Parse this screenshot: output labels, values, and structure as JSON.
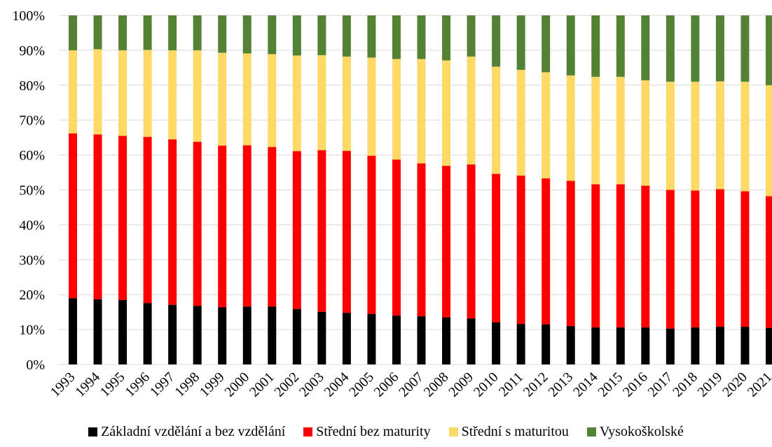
{
  "chart_data": {
    "type": "bar",
    "stacked": true,
    "title": "",
    "xlabel": "",
    "ylabel": "",
    "ylim": [
      0,
      100
    ],
    "y_tick_format": "percent",
    "y_ticks": [
      "0%",
      "10%",
      "20%",
      "30%",
      "40%",
      "50%",
      "60%",
      "70%",
      "80%",
      "90%",
      "100%"
    ],
    "grid": true,
    "legend_position": "bottom",
    "categories": [
      "1993",
      "1994",
      "1995",
      "1996",
      "1997",
      "1998",
      "1999",
      "2000",
      "2001",
      "2002",
      "2003",
      "2004",
      "2005",
      "2006",
      "2007",
      "2008",
      "2009",
      "2010",
      "2011",
      "2012",
      "2013",
      "2014",
      "2015",
      "2016",
      "2017",
      "2018",
      "2019",
      "2020",
      "2021"
    ],
    "series": [
      {
        "name": "Základní vzdělání a bez vzdělání",
        "color": "#000000",
        "values": [
          19.0,
          18.7,
          18.5,
          17.6,
          17.1,
          16.8,
          16.4,
          16.6,
          16.6,
          15.9,
          15.1,
          14.8,
          14.5,
          14.0,
          13.8,
          13.5,
          13.2,
          12.1,
          11.6,
          11.5,
          11.0,
          10.6,
          10.6,
          10.6,
          10.3,
          10.6,
          10.8,
          10.8,
          10.5
        ]
      },
      {
        "name": "Střední bez maturity",
        "color": "#ff0000",
        "values": [
          47.2,
          47.2,
          47.0,
          47.6,
          47.4,
          47.0,
          46.3,
          46.2,
          45.7,
          45.2,
          46.3,
          46.4,
          45.3,
          44.7,
          43.8,
          43.4,
          44.1,
          42.5,
          42.5,
          41.8,
          41.6,
          41.0,
          41.0,
          40.6,
          39.7,
          39.2,
          39.4,
          38.8,
          37.7
        ]
      },
      {
        "name": "Střední s maturitou",
        "color": "#ffd966",
        "values": [
          23.8,
          24.4,
          24.5,
          24.9,
          25.5,
          26.2,
          26.6,
          26.3,
          26.6,
          27.4,
          27.2,
          27.0,
          28.1,
          28.8,
          29.9,
          30.2,
          30.9,
          30.7,
          30.3,
          30.4,
          30.2,
          30.8,
          30.8,
          30.2,
          31.0,
          31.2,
          30.9,
          31.4,
          31.8
        ]
      },
      {
        "name": "Vysokoškolské",
        "color": "#548235",
        "values": [
          10.0,
          9.7,
          10.0,
          9.9,
          10.0,
          10.0,
          10.7,
          10.9,
          11.1,
          11.5,
          11.4,
          11.8,
          12.1,
          12.5,
          12.5,
          12.9,
          11.8,
          14.7,
          15.6,
          16.3,
          17.2,
          17.6,
          17.6,
          18.6,
          19.0,
          19.0,
          18.9,
          19.0,
          20.0
        ]
      }
    ]
  }
}
